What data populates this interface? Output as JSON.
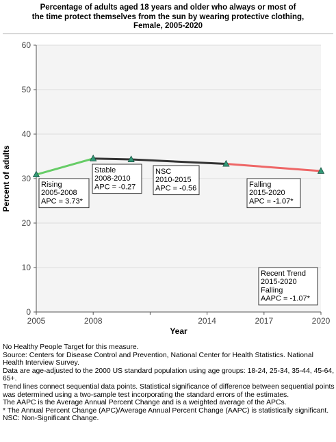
{
  "title_lines": [
    "Percentage of adults aged 18 years and older who always or most of",
    "the time protect themselves from the sun by wearing protective clothing,",
    "Female,  2005-2020"
  ],
  "colors": {
    "rising": "#66cc66",
    "stable": "#333333",
    "falling": "#ee6666",
    "marker_fill": "#339977",
    "plot_bg": "#f4f4f4",
    "grid": "#dddddd"
  },
  "chart_data": {
    "type": "line",
    "xlabel": "Year",
    "ylabel": "Percent of adults",
    "xlim": [
      2005,
      2020
    ],
    "ylim": [
      0,
      60
    ],
    "x_ticks": [
      2005,
      2008,
      2011,
      2014,
      2017,
      2020
    ],
    "x_tick_labels": [
      "2005",
      "2008",
      "",
      "2014",
      "2017",
      "2020"
    ],
    "y_ticks": [
      0,
      10,
      20,
      30,
      40,
      50,
      60
    ],
    "y_tick_labels": [
      "0",
      "10",
      "20",
      "30",
      "40",
      "50",
      "60"
    ],
    "grid": true,
    "points": [
      {
        "x": 2005,
        "y": 30.9
      },
      {
        "x": 2008,
        "y": 34.5
      },
      {
        "x": 2010,
        "y": 34.3
      },
      {
        "x": 2015,
        "y": 33.3
      },
      {
        "x": 2020,
        "y": 31.7
      }
    ],
    "segments": [
      {
        "from": 2005,
        "to": 2008,
        "trend": "rising",
        "y": [
          30.9,
          34.5
        ]
      },
      {
        "from": 2008,
        "to": 2010,
        "trend": "stable",
        "y": [
          34.5,
          34.3
        ]
      },
      {
        "from": 2010,
        "to": 2015,
        "trend": "stable",
        "y": [
          34.3,
          33.3
        ]
      },
      {
        "from": 2015,
        "to": 2020,
        "trend": "falling",
        "y": [
          33.3,
          31.7
        ]
      }
    ],
    "annotations": [
      {
        "lines": [
          "Rising",
          "2005-2008",
          "APC =  3.73*"
        ]
      },
      {
        "lines": [
          "Stable",
          "2008-2010",
          "APC = -0.27"
        ]
      },
      {
        "lines": [
          "NSC",
          "2010-2015",
          "APC = -0.56"
        ]
      },
      {
        "lines": [
          "Falling",
          "2015-2020",
          "APC = -1.07*"
        ]
      },
      {
        "lines": [
          "Recent Trend",
          "2015-2020",
          "Falling",
          "AAPC = -1.07*"
        ]
      }
    ]
  },
  "footnotes": [
    "No Healthy People Target for this measure.",
    "Source: Centers for Disease Control and Prevention, National Center for Health Statistics. National Health Interview Survey.",
    "Data are age-adjusted to the 2000 US standard population using age groups: 18-24, 25-34, 35-44, 45-64, 65+.",
    "Trend lines connect sequential data points. Statistical significance of difference between sequential points was determined using a two-sample test incorporating the standard errors of the estimates.",
    "The AAPC is the Average Annual Percent Change and is a weighted average of the APCs.",
    "* The Annual Percent Change (APC)/Average Annual Percent Change (AAPC) is statistically significant.",
    "NSC: Non-Significant Change."
  ]
}
